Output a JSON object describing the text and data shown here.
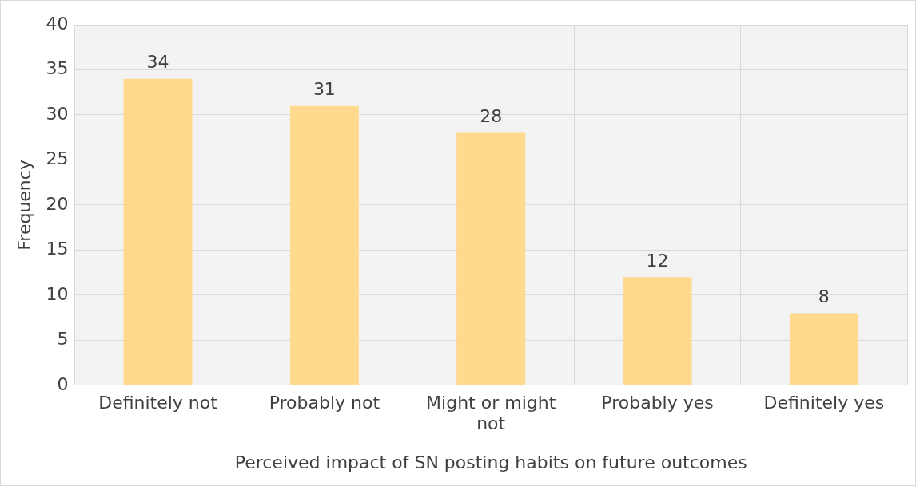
{
  "chart_data": {
    "type": "bar",
    "xlabel": "Perceived impact of SN posting habits on future outcomes",
    "ylabel": "Frequency",
    "categories": [
      "Definitely not",
      "Probably not",
      "Might or might not",
      "Probably yes",
      "Definitely yes"
    ],
    "values": [
      34,
      31,
      28,
      12,
      8
    ],
    "color": "#ffd98e",
    "ylim": [
      0,
      40
    ],
    "yticks": [
      0,
      5,
      10,
      15,
      20,
      25,
      30,
      35,
      40
    ],
    "grid": true,
    "data_labels": true,
    "legend": false
  }
}
